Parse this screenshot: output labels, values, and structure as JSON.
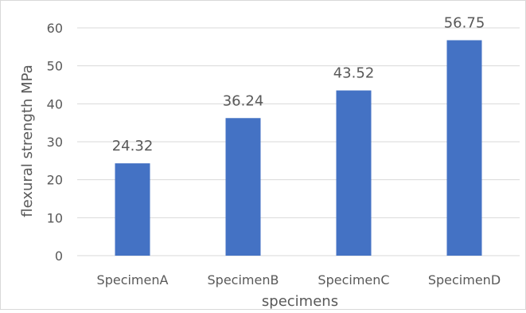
{
  "chart_data": {
    "type": "bar",
    "categories": [
      "SpecimenA",
      "SpecimenB",
      "SpecimenC",
      "SpecimenD"
    ],
    "values": [
      24.32,
      36.24,
      43.52,
      56.75
    ],
    "data_labels": [
      "24.32",
      "36.24",
      "43.52",
      "56.75"
    ],
    "xlabel": "specimens",
    "ylabel": "flexural strength MPa",
    "ylim": [
      0,
      60
    ],
    "yticks": [
      0,
      10,
      20,
      30,
      40,
      50,
      60
    ],
    "ytick_labels": [
      "0",
      "10",
      "20",
      "30",
      "40",
      "50",
      "60"
    ],
    "grid": true,
    "legend": "none",
    "bar_color": "#4472c4",
    "grid_color": "#d9d9d9"
  }
}
